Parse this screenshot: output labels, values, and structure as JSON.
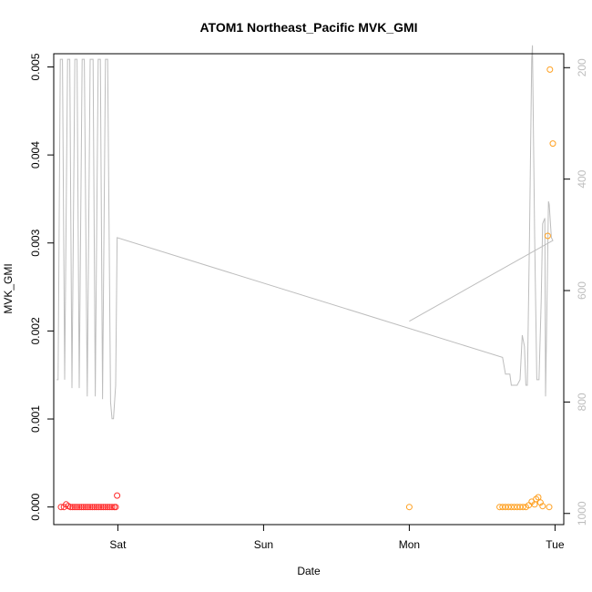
{
  "chart_data": {
    "type": "scatter",
    "title": "ATOM1 Northeast_Pacific MVK_GMI",
    "xlabel": "Date",
    "ylabel": "MVK_GMI",
    "x_ticks": [
      {
        "label": "Sat",
        "day": 0
      },
      {
        "label": "Sun",
        "day": 1
      },
      {
        "label": "Mon",
        "day": 2
      },
      {
        "label": "Tue",
        "day": 3
      }
    ],
    "xlim_days": [
      -0.44,
      3.06
    ],
    "ylim": [
      -0.0002,
      0.00515
    ],
    "y_ticks": [
      "0.000",
      "0.001",
      "0.002",
      "0.003",
      "0.004",
      "0.005"
    ],
    "y_tick_values": [
      0,
      0.001,
      0.002,
      0.003,
      0.004,
      0.005
    ],
    "right_axis": {
      "label": "",
      "color": "#bdbdbd",
      "range": [
        1020,
        175
      ],
      "ticks": [
        "200",
        "400",
        "600",
        "800",
        "1000"
      ],
      "tick_values": [
        200,
        400,
        600,
        800,
        1000
      ]
    },
    "colors": {
      "series_red": "#ff2a2a",
      "series_orange": "#ffa020",
      "profile_line": "#bdbdbd",
      "frame": "#000000"
    },
    "series": [
      {
        "color": "#ff2a2a",
        "points": [
          {
            "day": -0.39,
            "y": 0.0
          },
          {
            "day": -0.37,
            "y": 0.0
          },
          {
            "day": -0.355,
            "y": 3e-05
          },
          {
            "day": -0.34,
            "y": 1e-05
          },
          {
            "day": -0.325,
            "y": 0.0
          },
          {
            "day": -0.31,
            "y": 0.0
          },
          {
            "day": -0.295,
            "y": 0.0
          },
          {
            "day": -0.28,
            "y": 0.0
          },
          {
            "day": -0.265,
            "y": 0.0
          },
          {
            "day": -0.25,
            "y": 0.0
          },
          {
            "day": -0.235,
            "y": 0.0
          },
          {
            "day": -0.22,
            "y": 0.0
          },
          {
            "day": -0.205,
            "y": 0.0
          },
          {
            "day": -0.19,
            "y": 0.0
          },
          {
            "day": -0.175,
            "y": 0.0
          },
          {
            "day": -0.16,
            "y": 0.0
          },
          {
            "day": -0.145,
            "y": 0.0
          },
          {
            "day": -0.13,
            "y": 0.0
          },
          {
            "day": -0.115,
            "y": 0.0
          },
          {
            "day": -0.1,
            "y": 0.0
          },
          {
            "day": -0.085,
            "y": 0.0
          },
          {
            "day": -0.07,
            "y": 0.0
          },
          {
            "day": -0.055,
            "y": 0.0
          },
          {
            "day": -0.04,
            "y": 0.0
          },
          {
            "day": -0.025,
            "y": 0.0
          },
          {
            "day": -0.015,
            "y": 0.0
          },
          {
            "day": -0.005,
            "y": 0.00013
          }
        ]
      },
      {
        "color": "#ffa020",
        "points": [
          {
            "day": 2.0,
            "y": 0.0
          },
          {
            "day": 2.62,
            "y": 0.0
          },
          {
            "day": 2.64,
            "y": 0.0
          },
          {
            "day": 2.66,
            "y": 0.0
          },
          {
            "day": 2.68,
            "y": 0.0
          },
          {
            "day": 2.7,
            "y": 0.0
          },
          {
            "day": 2.72,
            "y": 0.0
          },
          {
            "day": 2.74,
            "y": 0.0
          },
          {
            "day": 2.76,
            "y": 0.0
          },
          {
            "day": 2.78,
            "y": 0.0
          },
          {
            "day": 2.8,
            "y": 0.0
          },
          {
            "day": 2.82,
            "y": 2e-05
          },
          {
            "day": 2.84,
            "y": 6e-05
          },
          {
            "day": 2.86,
            "y": 3e-05
          },
          {
            "day": 2.87,
            "y": 9e-05
          },
          {
            "day": 2.885,
            "y": 0.00011
          },
          {
            "day": 2.9,
            "y": 5e-05
          },
          {
            "day": 2.915,
            "y": 1e-05
          },
          {
            "day": 2.96,
            "y": 0.0
          },
          {
            "day": 2.95,
            "y": 0.00308
          },
          {
            "day": 2.965,
            "y": 0.00497
          },
          {
            "day": 2.985,
            "y": 0.00413
          }
        ]
      }
    ],
    "profile_line": [
      [
        -0.42,
        760
      ],
      [
        -0.41,
        760
      ],
      [
        -0.395,
        185
      ],
      [
        -0.38,
        185
      ],
      [
        -0.365,
        760
      ],
      [
        -0.345,
        185
      ],
      [
        -0.33,
        185
      ],
      [
        -0.315,
        775
      ],
      [
        -0.295,
        185
      ],
      [
        -0.28,
        185
      ],
      [
        -0.265,
        775
      ],
      [
        -0.245,
        185
      ],
      [
        -0.23,
        185
      ],
      [
        -0.21,
        790
      ],
      [
        -0.19,
        185
      ],
      [
        -0.17,
        185
      ],
      [
        -0.155,
        790
      ],
      [
        -0.135,
        185
      ],
      [
        -0.12,
        185
      ],
      [
        -0.105,
        795
      ],
      [
        -0.085,
        185
      ],
      [
        -0.07,
        185
      ],
      [
        -0.05,
        800
      ],
      [
        -0.04,
        830
      ],
      [
        -0.03,
        830
      ],
      [
        -0.015,
        770
      ],
      [
        -0.005,
        505
      ],
      [
        2.64,
        720
      ],
      [
        2.66,
        750
      ],
      [
        2.69,
        750
      ],
      [
        2.7,
        770
      ],
      [
        2.74,
        770
      ],
      [
        2.76,
        760
      ],
      [
        2.775,
        680
      ],
      [
        2.79,
        700
      ],
      [
        2.8,
        770
      ],
      [
        2.81,
        770
      ],
      [
        2.825,
        500
      ],
      [
        2.84,
        185
      ],
      [
        2.845,
        160
      ],
      [
        2.86,
        500
      ],
      [
        2.875,
        760
      ],
      [
        2.89,
        760
      ],
      [
        2.905,
        620
      ],
      [
        2.915,
        480
      ],
      [
        2.93,
        470
      ],
      [
        2.935,
        790
      ],
      [
        2.945,
        620
      ],
      [
        2.955,
        440
      ],
      [
        2.96,
        445
      ],
      [
        2.975,
        505
      ],
      [
        2.985,
        510
      ],
      [
        2.0,
        655
      ]
    ]
  }
}
